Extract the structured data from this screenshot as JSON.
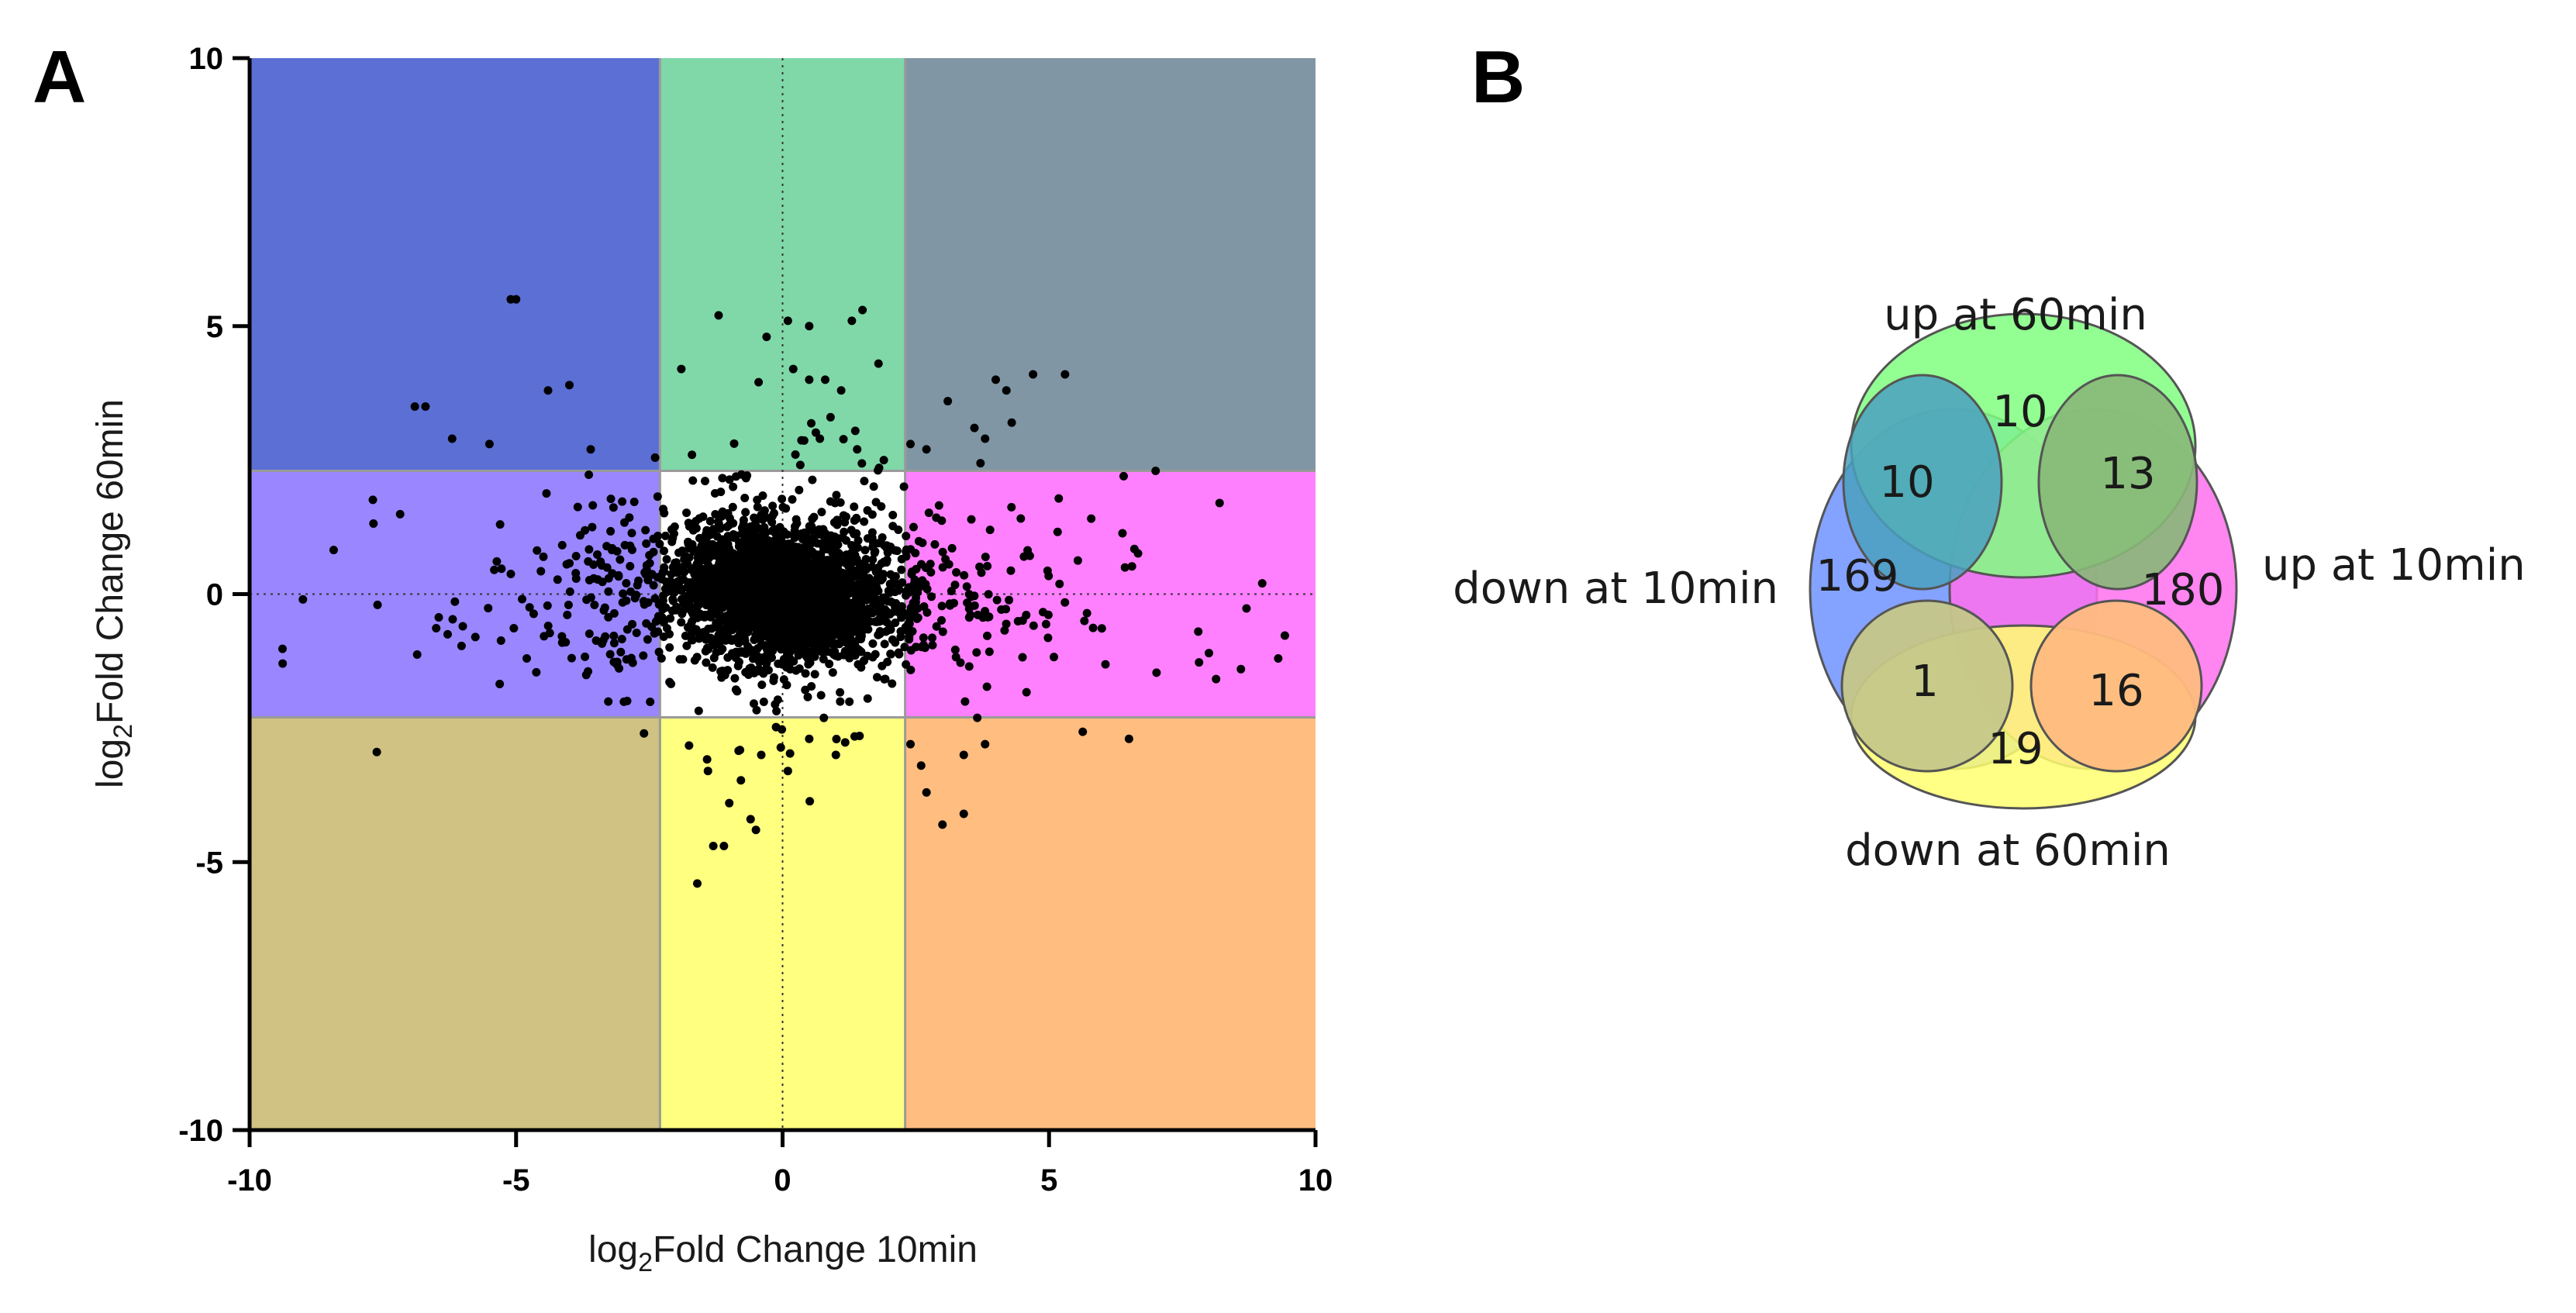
{
  "panel_labels": [
    "A",
    "B"
  ],
  "chart_data": [
    {
      "type": "scatter",
      "title": "",
      "xlabel": {
        "pre": "log",
        "sub": "2",
        "post": "Fold Change 10min"
      },
      "ylabel": {
        "pre": "log",
        "sub": "2",
        "post": "Fold Change 60min"
      },
      "xlim": [
        -10,
        10
      ],
      "ylim": [
        -10,
        10
      ],
      "xticks": [
        -10,
        -5,
        0,
        5,
        10
      ],
      "yticks": [
        -10,
        -5,
        0,
        5,
        10
      ],
      "tick_labels_x": [
        "-10",
        "-5",
        "0",
        "5",
        "10"
      ],
      "tick_labels_y": [
        "-10",
        "-5",
        "0",
        "5",
        "10"
      ],
      "thresholds": {
        "x": [
          -2.3,
          2.3
        ],
        "y": [
          -2.3,
          2.3
        ]
      },
      "zero_lines": "dotted",
      "grid": false,
      "background_regions": {
        "x_low_y_high": "#5b6fd4",
        "x_mid_y_high": "#80d8a8",
        "x_high_y_high": "#8096a5",
        "x_low_y_mid": "#9a86ff",
        "x_mid_y_mid": "#ffffff",
        "x_high_y_mid": "#ff80ff",
        "x_low_y_low": "#cfc282",
        "x_mid_y_low": "#ffff80",
        "x_high_y_low": "#ffbd80"
      },
      "point_color": "#000000",
      "highlighted_points": [
        [
          -5.0,
          5.5
        ],
        [
          -5.1,
          5.5
        ],
        [
          -6.7,
          3.5
        ],
        [
          -6.9,
          3.5
        ],
        [
          -4.4,
          3.8
        ],
        [
          -4.0,
          3.9
        ],
        [
          -6.2,
          2.9
        ],
        [
          -5.5,
          2.8
        ],
        [
          -3.6,
          2.7
        ],
        [
          -1.2,
          5.2
        ],
        [
          -0.3,
          4.8
        ],
        [
          0.1,
          5.1
        ],
        [
          0.5,
          5.0
        ],
        [
          1.3,
          5.1
        ],
        [
          1.5,
          5.3
        ],
        [
          -1.9,
          4.2
        ],
        [
          0.2,
          4.2
        ],
        [
          0.5,
          4.0
        ],
        [
          0.8,
          4.0
        ],
        [
          1.8,
          4.3
        ],
        [
          1.1,
          3.8
        ],
        [
          0.9,
          3.3
        ],
        [
          0.7,
          2.9
        ],
        [
          -1.7,
          2.6
        ],
        [
          1.4,
          2.7
        ],
        [
          1.9,
          2.5
        ],
        [
          3.1,
          3.6
        ],
        [
          4.0,
          4.0
        ],
        [
          4.2,
          3.8
        ],
        [
          4.7,
          4.1
        ],
        [
          5.3,
          4.1
        ],
        [
          3.6,
          3.1
        ],
        [
          3.8,
          2.9
        ],
        [
          4.3,
          3.2
        ],
        [
          2.7,
          2.7
        ],
        [
          2.4,
          2.8
        ],
        [
          -7.6,
          -0.2
        ],
        [
          -9.0,
          -0.1
        ],
        [
          -6.0,
          -0.6
        ],
        [
          -5.3,
          1.3
        ],
        [
          -4.8,
          -1.2
        ],
        [
          9.0,
          0.2
        ],
        [
          9.3,
          -1.2
        ],
        [
          8.0,
          -1.1
        ],
        [
          8.2,
          1.7
        ],
        [
          7.0,
          2.3
        ],
        [
          6.4,
          2.2
        ],
        [
          8.6,
          -1.4
        ],
        [
          7.8,
          -0.7
        ],
        [
          -2.6,
          -2.6
        ],
        [
          -1.4,
          -3.3
        ],
        [
          -0.4,
          -3.0
        ],
        [
          0.1,
          -3.3
        ],
        [
          -1.0,
          -3.9
        ],
        [
          -0.6,
          -4.2
        ],
        [
          -0.5,
          -4.4
        ],
        [
          -1.3,
          -4.7
        ],
        [
          -1.1,
          -4.7
        ],
        [
          -1.6,
          -5.4
        ],
        [
          1.0,
          -3.0
        ],
        [
          0.5,
          -2.7
        ],
        [
          2.6,
          -3.2
        ],
        [
          3.4,
          -3.0
        ],
        [
          3.8,
          -2.8
        ],
        [
          3.0,
          -4.3
        ],
        [
          3.4,
          -4.1
        ],
        [
          2.7,
          -3.7
        ],
        [
          6.5,
          -2.7
        ],
        [
          2.4,
          -2.8
        ]
      ]
    },
    {
      "type": "venn",
      "sets": [
        "up at 60min",
        "down at 10min",
        "up at 10min",
        "down at 60min"
      ],
      "set_colors": {
        "up at 60min": "#80ff80",
        "down at 10min": "#6f92ff",
        "up at 10min": "#ff70ee",
        "down at 60min": "#ffff70"
      },
      "regions": [
        {
          "sets": [
            "up at 60min"
          ],
          "label": "10"
        },
        {
          "sets": [
            "up at 60min",
            "down at 10min"
          ],
          "label": "10"
        },
        {
          "sets": [
            "up at 60min",
            "up at 10min"
          ],
          "label": "13"
        },
        {
          "sets": [
            "down at 10min"
          ],
          "label": "169"
        },
        {
          "sets": [
            "up at 10min"
          ],
          "label": "180"
        },
        {
          "sets": [
            "down at 10min",
            "down at 60min"
          ],
          "label": "1"
        },
        {
          "sets": [
            "up at 10min",
            "down at 60min"
          ],
          "label": "16"
        },
        {
          "sets": [
            "down at 60min"
          ],
          "label": "19"
        }
      ]
    }
  ]
}
